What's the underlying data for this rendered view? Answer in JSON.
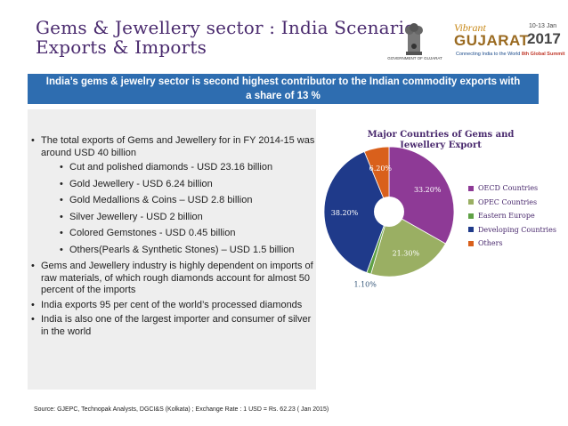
{
  "header": {
    "title_line1": "Gems & Jewellery sector : India Scenario",
    "title_line2": "Exports & Imports",
    "emblem_caption": "GOVERNMENT OF GUJARAT",
    "vg_vibrant": "Vibrant",
    "vg_gujarat": "GUJARAT",
    "vg_dates": "10-13 Jan",
    "vg_year": "2017",
    "vg_tagline": "Connecting India to the World",
    "vg_summit": "8th Global Summit"
  },
  "banner": {
    "text": "India’s gems & jewelry sector is second highest contributor to the Indian commodity exports with a share of 13 %"
  },
  "bullets": [
    {
      "level": 1,
      "text": "The total exports of Gems and Jewellery for in FY 2014-15 was around USD 40 billion"
    },
    {
      "level": 2,
      "text": "Cut and polished diamonds - USD 23.16 billion"
    },
    {
      "level": 2,
      "text": "Gold Jewellery - USD 6.24 billion"
    },
    {
      "level": 2,
      "text": "Gold Medallions & Coins – USD 2.8 billion"
    },
    {
      "level": 2,
      "text": "Silver Jewellery - USD 2 billion"
    },
    {
      "level": 2,
      "text": "Colored Gemstones - USD 0.45 billion"
    },
    {
      "level": 2,
      "text": "Others(Pearls & Synthetic Stones) – USD 1.5 billion"
    },
    {
      "level": 1,
      "text": "Gems and Jewellery industry is highly dependent on imports of raw materials, of which rough diamonds account for almost 50 percent of the imports"
    },
    {
      "level": 1,
      "text": "India exports 95 per cent of the world’s processed diamonds"
    },
    {
      "level": 1,
      "text": "India is also one of the largest importer and consumer of silver in the world"
    }
  ],
  "chart_data": {
    "type": "pie",
    "title": "Major Countries of Gems and Jewellery Export",
    "categories": [
      "OECD Countries",
      "OPEC Countries",
      "Eastern Europe",
      "Developing Countries",
      "Others"
    ],
    "values": [
      33.2,
      21.3,
      1.1,
      38.2,
      6.2
    ],
    "labels": [
      "33.20%",
      "21.30%",
      "1.10%",
      "38.20%",
      "6.20%"
    ],
    "colors": [
      "#8e3a96",
      "#9aaf63",
      "#5fa145",
      "#1f3a8a",
      "#d9601c"
    ],
    "legend_position": "right"
  },
  "source": "Source: GJEPC, Technopak Analysts, DGCI&S (Kolkata) ; Exchange Rate : 1 USD = Rs. 62.23 ( Jan 2015)"
}
